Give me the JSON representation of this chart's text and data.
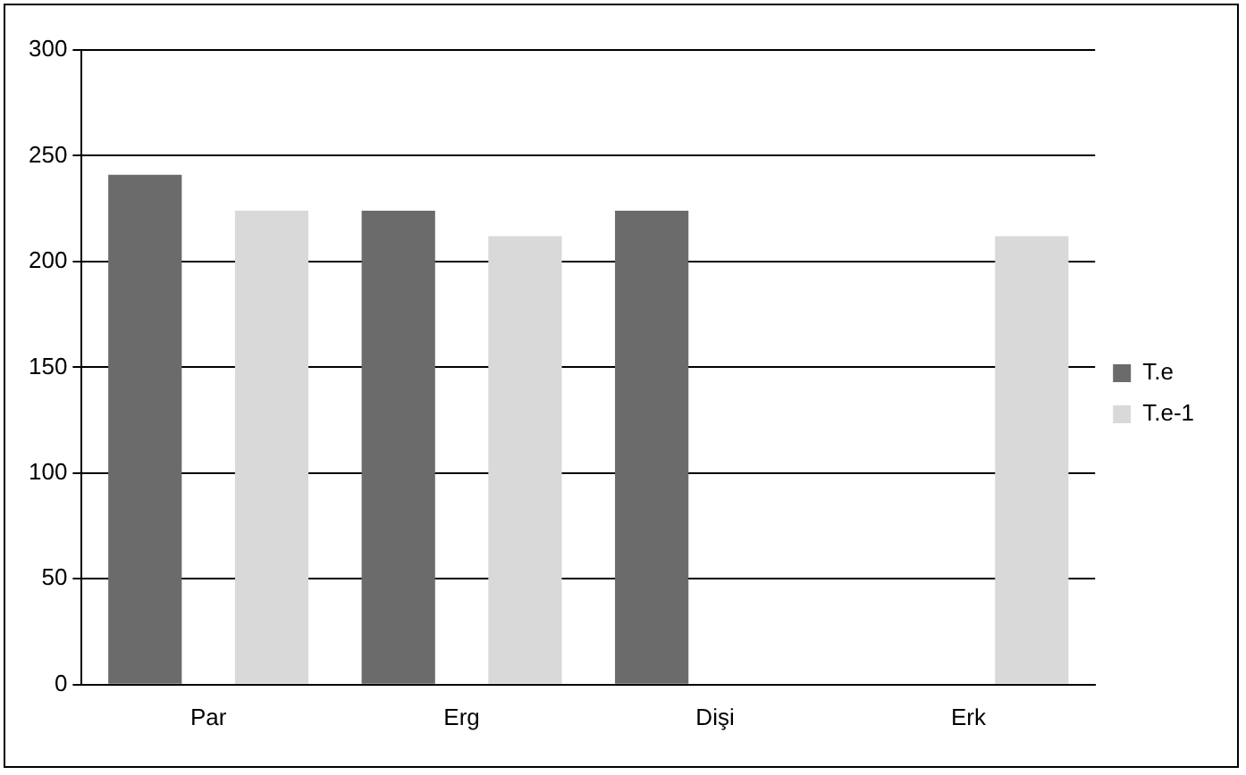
{
  "chart_data": {
    "type": "bar",
    "categories": [
      "Par",
      "Erg",
      "Dişi",
      "Erk"
    ],
    "series": [
      {
        "name": "T.e",
        "color": "#6b6b6b",
        "values": [
          241,
          224,
          224,
          null
        ]
      },
      {
        "name": "T.e-1",
        "color": "#d9d9d9",
        "values": [
          224,
          212,
          null,
          212
        ]
      }
    ],
    "ylim": [
      0,
      300
    ],
    "yticks": [
      0,
      50,
      100,
      150,
      200,
      250,
      300
    ],
    "grid": "y",
    "legend": "right"
  }
}
